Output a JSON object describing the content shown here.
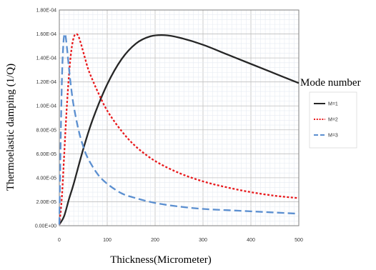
{
  "chart_data": {
    "type": "line",
    "title": "",
    "xlabel": "Thickness(Micrometer)",
    "ylabel": "Thermoelastic damping (1/Q)",
    "xlim": [
      0,
      500
    ],
    "ylim": [
      0,
      0.00018
    ],
    "x_ticks": [
      "0",
      "100",
      "200",
      "300",
      "400",
      "500"
    ],
    "y_ticks": [
      "0.00E+00",
      "2.00E-05",
      "4.00E-05",
      "6.00E-05",
      "8.00E-05",
      "1.00E-04",
      "1.20E-04",
      "1.40E-04",
      "1.60E-04",
      "1.80E-04"
    ],
    "grid": true,
    "legend_title": "Mode number",
    "legend_position": "right",
    "series": [
      {
        "name": "M=1",
        "color": "#262626",
        "dash": "solid",
        "x": [
          0,
          10,
          20,
          30,
          50,
          70,
          100,
          130,
          160,
          190,
          220,
          250,
          300,
          350,
          400,
          450,
          500
        ],
        "y": [
          1e-06,
          8e-06,
          2.2e-05,
          3.5e-05,
          6.4e-05,
          8.9e-05,
          0.000118,
          0.000139,
          0.000152,
          0.000158,
          0.000159,
          0.000157,
          0.000151,
          0.000143,
          0.000135,
          0.000127,
          0.000119
        ]
      },
      {
        "name": "M=2",
        "color": "#e8191c",
        "dash": "dotted",
        "x": [
          0,
          5,
          10,
          15,
          20,
          25,
          30,
          35,
          40,
          45,
          50,
          60,
          70,
          80,
          100,
          130,
          160,
          200,
          250,
          300,
          350,
          400,
          450,
          500
        ],
        "y": [
          1e-06,
          2.2e-05,
          5.8e-05,
          9.5e-05,
          0.000125,
          0.000146,
          0.000157,
          0.00016,
          0.000158,
          0.000152,
          0.000145,
          0.000131,
          0.000121,
          0.000112,
          9.6e-05,
          7.9e-05,
          6.6e-05,
          5.4e-05,
          4.4e-05,
          3.7e-05,
          3.2e-05,
          2.8e-05,
          2.5e-05,
          2.3e-05
        ]
      },
      {
        "name": "M=3",
        "color": "#5b8fd0",
        "dash": "dashed",
        "x": [
          0,
          3,
          6,
          9,
          12,
          15,
          20,
          25,
          30,
          40,
          50,
          60,
          80,
          100,
          130,
          160,
          200,
          250,
          300,
          350,
          400,
          450,
          500
        ],
        "y": [
          1e-06,
          7.5e-05,
          0.00013,
          0.000155,
          0.00016,
          0.000152,
          0.000132,
          0.000114,
          0.0001,
          8e-05,
          6.6e-05,
          5.6e-05,
          4.3e-05,
          3.5e-05,
          2.7e-05,
          2.3e-05,
          1.9e-05,
          1.6e-05,
          1.4e-05,
          1.3e-05,
          1.2e-05,
          1.1e-05,
          1e-05
        ]
      }
    ]
  }
}
